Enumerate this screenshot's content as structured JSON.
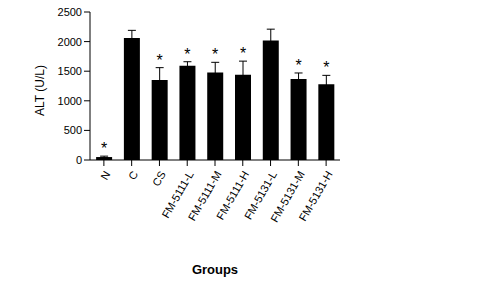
{
  "chart_data": {
    "type": "bar",
    "categories": [
      "N",
      "C",
      "CS",
      "FM-5111-L",
      "FM-5111-M",
      "FM-5111-H",
      "FM-5131-L",
      "FM-5131-M",
      "FM-5131-H"
    ],
    "values": [
      50,
      2060,
      1350,
      1590,
      1480,
      1440,
      2020,
      1370,
      1280
    ],
    "errors": [
      15,
      130,
      210,
      70,
      170,
      230,
      190,
      100,
      150
    ],
    "annotations": [
      "*",
      null,
      "*",
      "*",
      "*",
      "*",
      null,
      "*",
      "*"
    ],
    "color": "#000000",
    "x_label": "Groups",
    "y_label": "ALT (U/L)",
    "ylim": [
      0,
      2500
    ],
    "yticks": [
      0,
      500,
      1000,
      1500,
      2000,
      2500
    ],
    "grid": false
  }
}
